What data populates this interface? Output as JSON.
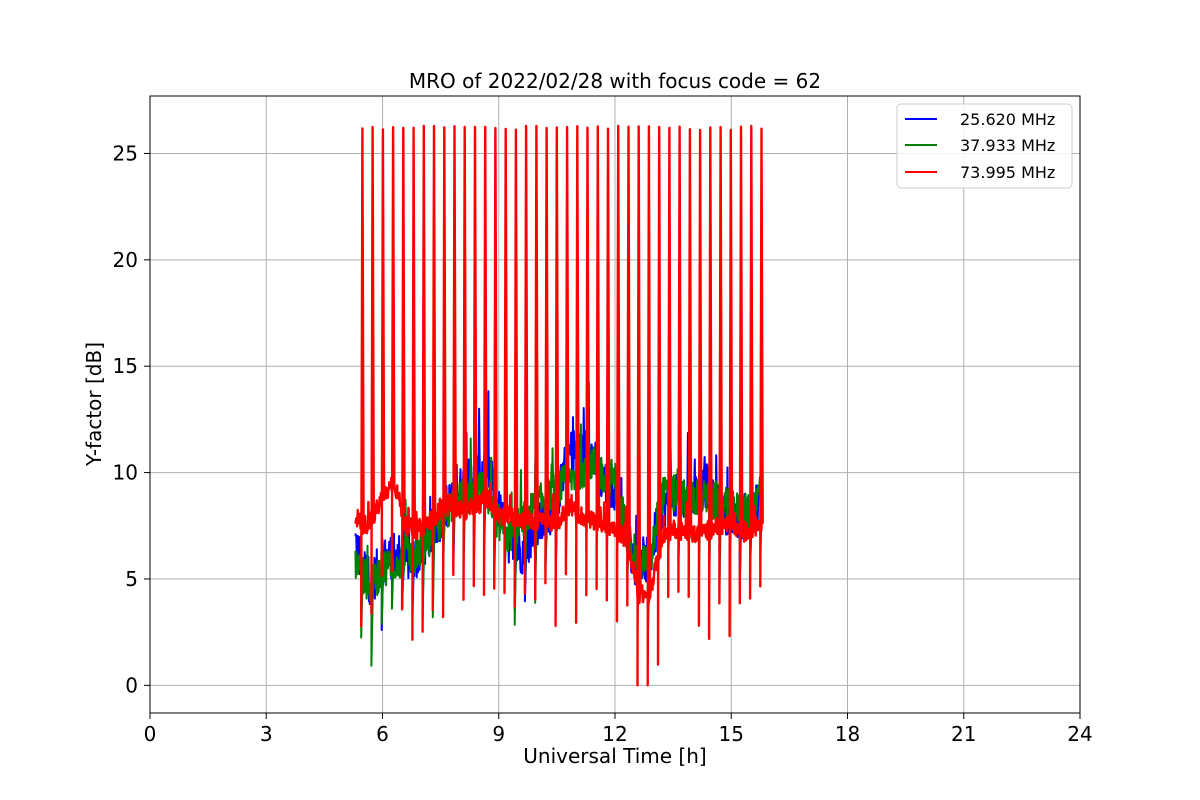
{
  "chart_data": {
    "type": "line",
    "title": "MRO of 2022/02/28 with focus code = 62",
    "xlabel": "Universal Time [h]",
    "ylabel": "Y-factor [dB]",
    "xlim": [
      0,
      24
    ],
    "ylim": [
      -1.3,
      27.7
    ],
    "xticks": [
      "0",
      "3",
      "6",
      "9",
      "12",
      "15",
      "18",
      "21",
      "24"
    ],
    "xtick_values": [
      0,
      3,
      6,
      9,
      12,
      15,
      18,
      21,
      24
    ],
    "yticks": [
      "0",
      "5",
      "10",
      "15",
      "20",
      "25"
    ],
    "ytick_values": [
      0,
      5,
      10,
      15,
      20,
      25
    ],
    "grid": true,
    "legend_position": "top-right",
    "spike_peak": 26.2,
    "series": [
      {
        "name": "25.620 MHz",
        "color": "#0000ff",
        "x": [
          5.3,
          5.5,
          5.7,
          6.0,
          6.3,
          6.6,
          6.9,
          7.2,
          7.5,
          7.8,
          8.1,
          8.4,
          8.7,
          9.0,
          9.3,
          9.6,
          9.9,
          10.2,
          10.5,
          10.8,
          11.1,
          11.4,
          11.7,
          12.0,
          12.3,
          12.6,
          12.9,
          13.2,
          13.5,
          13.8,
          14.1,
          14.4,
          14.7,
          15.0,
          15.3,
          15.6,
          15.8
        ],
        "y": [
          6.8,
          5.6,
          4.8,
          5.8,
          6.2,
          5.9,
          6.1,
          7.0,
          7.9,
          8.8,
          9.4,
          9.8,
          10.5,
          8.2,
          6.6,
          6.3,
          7.2,
          7.8,
          8.6,
          10.9,
          11.2,
          10.8,
          9.6,
          9.3,
          7.0,
          5.4,
          6.0,
          8.4,
          8.9,
          8.6,
          9.0,
          9.4,
          8.3,
          8.1,
          7.9,
          8.1,
          9.2
        ]
      },
      {
        "name": "37.933 MHz",
        "color": "#008000",
        "x": [
          5.3,
          5.5,
          5.7,
          6.0,
          6.3,
          6.6,
          6.9,
          7.2,
          7.5,
          7.8,
          8.1,
          8.4,
          8.7,
          9.0,
          9.3,
          9.6,
          9.9,
          10.2,
          10.5,
          10.8,
          11.1,
          11.4,
          11.7,
          12.0,
          12.3,
          12.6,
          12.9,
          13.2,
          13.5,
          13.8,
          14.1,
          14.4,
          14.7,
          15.0,
          15.3,
          15.6,
          15.8
        ],
        "y": [
          5.9,
          5.2,
          4.6,
          5.5,
          5.8,
          6.0,
          6.3,
          6.8,
          7.8,
          8.6,
          8.9,
          9.2,
          9.0,
          7.6,
          6.9,
          7.7,
          8.3,
          8.8,
          9.2,
          9.6,
          10.1,
          10.5,
          9.9,
          9.7,
          7.2,
          5.7,
          5.9,
          8.9,
          9.0,
          8.8,
          8.9,
          8.7,
          8.5,
          8.3,
          8.1,
          8.2,
          9.8
        ]
      },
      {
        "name": "73.995 MHz",
        "color": "#ff0000",
        "x": [
          5.3,
          5.5,
          5.7,
          6.0,
          6.3,
          6.6,
          6.9,
          7.2,
          7.5,
          7.8,
          8.1,
          8.4,
          8.7,
          9.0,
          9.3,
          9.6,
          9.9,
          10.2,
          10.5,
          10.8,
          11.1,
          11.4,
          11.7,
          12.0,
          12.3,
          12.6,
          12.9,
          13.2,
          13.5,
          13.8,
          14.1,
          14.4,
          14.7,
          15.0,
          15.3,
          15.6,
          15.8
        ],
        "y": [
          8.0,
          7.5,
          7.7,
          8.8,
          9.6,
          7.5,
          7.3,
          7.7,
          8.2,
          8.4,
          8.2,
          8.4,
          8.8,
          7.9,
          8.0,
          7.8,
          7.7,
          7.7,
          7.6,
          8.4,
          8.0,
          7.7,
          7.6,
          7.3,
          6.9,
          4.3,
          4.2,
          6.8,
          7.4,
          7.2,
          7.1,
          7.3,
          7.5,
          7.6,
          7.1,
          7.4,
          7.7
        ]
      }
    ]
  }
}
